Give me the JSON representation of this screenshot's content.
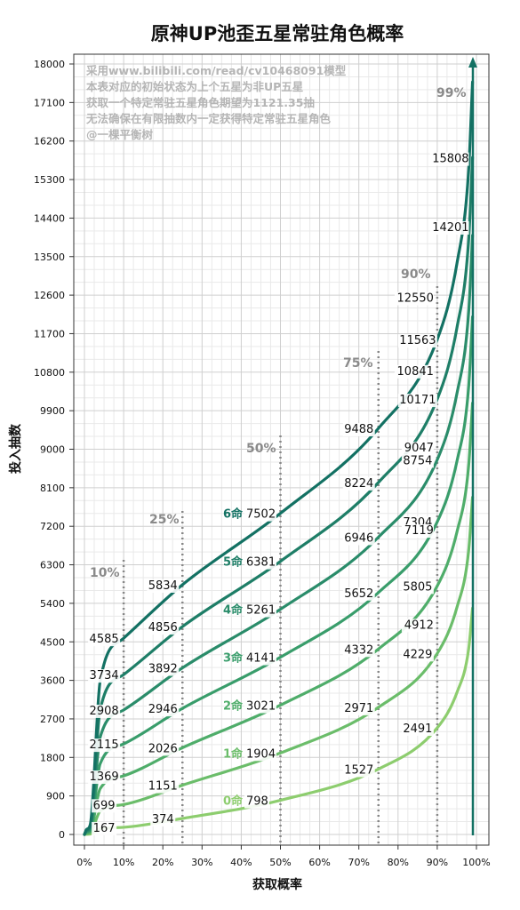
{
  "chart_data": {
    "type": "line",
    "title": "原神UP池歪五星常驻角色概率",
    "xlabel": "获取概率",
    "ylabel": "投入抽数",
    "xlim": [
      0,
      100
    ],
    "ylim": [
      0,
      18000
    ],
    "x_ticks": [
      "0%",
      "10%",
      "20%",
      "30%",
      "40%",
      "50%",
      "60%",
      "70%",
      "80%",
      "90%",
      "100%"
    ],
    "y_ticks": [
      "0",
      "900",
      "1800",
      "2700",
      "3600",
      "4500",
      "5400",
      "6300",
      "7200",
      "8100",
      "9000",
      "9900",
      "10800",
      "11700",
      "12600",
      "13500",
      "14400",
      "15300",
      "16200",
      "17100",
      "18000"
    ],
    "grid": true,
    "notes": [
      "采用www.bilibili.com/read/cv10468091模型",
      "本表对应的初始状态为上个五星为非UP五星",
      "获取一个特定常驻五星角色期望为1121.35抽",
      "无法确保在有限抽数内一定获得特定常驻五星角色",
      "@一棵平衡树"
    ],
    "percentile_markers": [
      {
        "x": 10,
        "label": "10%"
      },
      {
        "x": 25,
        "label": "25%"
      },
      {
        "x": 50,
        "label": "50%"
      },
      {
        "x": 75,
        "label": "75%"
      },
      {
        "x": 90,
        "label": "90%"
      },
      {
        "x": 99,
        "label": "99%"
      }
    ],
    "series": [
      {
        "name": "0命",
        "color": "#8dcd6e",
        "values": [
          167,
          374,
          798,
          1527,
          2491
        ]
      },
      {
        "name": "1命",
        "color": "#6bbd6a",
        "values": [
          699,
          1151,
          1904,
          2971,
          4229
        ]
      },
      {
        "name": "2命",
        "color": "#4fad6a",
        "values": [
          1369,
          2026,
          3021,
          4332,
          5805
        ]
      },
      {
        "name": "3命",
        "color": "#399d6b",
        "values": [
          2115,
          2946,
          4141,
          5652,
          7304
        ]
      },
      {
        "name": "4命",
        "color": "#2a8c6a",
        "values": [
          2908,
          3892,
          5261,
          6946,
          8754
        ]
      },
      {
        "name": "5命",
        "color": "#1e7e67",
        "values": [
          3734,
          4856,
          6381,
          8224,
          10171
        ]
      },
      {
        "name": "6命",
        "color": "#137163",
        "values": [
          4585,
          5834,
          7502,
          9488,
          11563
        ]
      }
    ],
    "series_x": [
      10,
      25,
      50,
      75,
      90
    ],
    "extra_labels": [
      {
        "x": 90,
        "text": "4912"
      },
      {
        "x": 90,
        "text": "7119"
      },
      {
        "x": 90,
        "text": "9047"
      },
      {
        "x": 90,
        "text": "10841"
      },
      {
        "x": 90,
        "text": "12550"
      },
      {
        "x": 99,
        "text": "14201"
      },
      {
        "x": 99,
        "text": "15808"
      }
    ]
  }
}
